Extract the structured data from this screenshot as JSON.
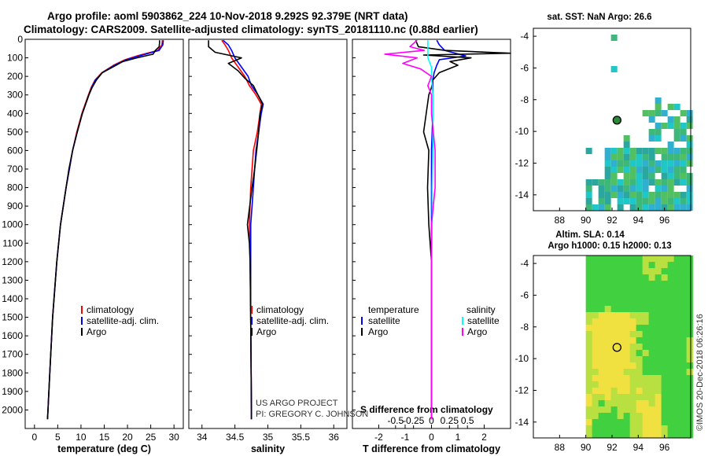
{
  "header": {
    "line1": "Argo profile: aoml 5903862_224 10-Nov-2018 9.292S 92.379E (NRT data)",
    "line2": "Climatology: CARS2009. Satellite-adjusted climatology: synTS_20181110.nc (0.88d earlier)"
  },
  "credit": {
    "project": "US ARGO PROJECT",
    "pi": "PI: GREGORY C. JOHNSON",
    "imos": "©IMOS 20-Dec-2018 06:26:16"
  },
  "colors": {
    "climatology": "#ff0000",
    "satellite": "#0000ff",
    "argo": "#000000",
    "salinity_satellite": "#00ffff",
    "salinity_argo": "#ff00ff"
  },
  "chart_data": [
    {
      "id": "temperature",
      "type": "line",
      "xlabel": "temperature (deg C)",
      "ylabel": "",
      "xlim": [
        -2,
        32
      ],
      "ylim": [
        2100,
        0
      ],
      "xticks": [
        0,
        5,
        10,
        15,
        20,
        25,
        30
      ],
      "xtick_labels": [
        "0",
        "5",
        "10",
        "15",
        "20",
        "25",
        "30"
      ],
      "yticks": [
        0,
        100,
        200,
        300,
        400,
        500,
        600,
        700,
        800,
        900,
        1000,
        1100,
        1200,
        1300,
        1400,
        1500,
        1600,
        1700,
        1800,
        1900,
        2000
      ],
      "legend": [
        "climatology",
        "satellite-adj. clim.",
        "Argo"
      ],
      "legend_position": "lower-right",
      "series": [
        {
          "name": "climatology",
          "color": "#ff0000",
          "depth": [
            5,
            30,
            60,
            90,
            110,
            140,
            180,
            220,
            260,
            300,
            400,
            500,
            600,
            700,
            800,
            1000,
            1200,
            1500,
            1800,
            2000,
            2050
          ],
          "values": [
            27.5,
            27.4,
            26.5,
            22,
            19.5,
            17,
            14.5,
            13,
            12.2,
            11.6,
            10.2,
            9.1,
            8.2,
            7.5,
            6.8,
            5.6,
            4.8,
            3.9,
            3.3,
            2.9,
            2.8
          ]
        },
        {
          "name": "satellite-adj. clim.",
          "color": "#0000ff",
          "depth": [
            5,
            30,
            60,
            90,
            110,
            140,
            180,
            220,
            260,
            300,
            400,
            500,
            600,
            700,
            800,
            1000,
            1200,
            1500,
            1800,
            2000,
            2050
          ],
          "values": [
            27.7,
            27.6,
            26.8,
            22.5,
            19.8,
            17.2,
            14.6,
            13.1,
            12.3,
            11.7,
            10.3,
            9.2,
            8.2,
            7.5,
            6.8,
            5.6,
            4.8,
            3.9,
            3.3,
            2.9,
            2.8
          ]
        },
        {
          "name": "Argo",
          "color": "#000000",
          "depth": [
            5,
            20,
            40,
            60,
            80,
            100,
            120,
            150,
            180,
            220,
            260,
            300,
            400,
            500,
            600,
            700,
            800,
            1000,
            1200,
            1500,
            1800,
            2000,
            2050
          ],
          "values": [
            26.9,
            26.9,
            26.8,
            26.0,
            25.5,
            22,
            19,
            16.8,
            14.6,
            13.3,
            12.4,
            11.7,
            10.3,
            9.2,
            8.2,
            7.4,
            6.8,
            5.6,
            4.8,
            3.9,
            3.3,
            2.9,
            2.8
          ]
        }
      ]
    },
    {
      "id": "salinity",
      "type": "line",
      "xlabel": "salinity",
      "xlim": [
        33.8,
        36.2
      ],
      "ylim": [
        2100,
        0
      ],
      "xticks": [
        34,
        34.5,
        35,
        35.5,
        36
      ],
      "xtick_labels": [
        "34",
        "34.5",
        "35",
        "35.5",
        "36"
      ],
      "legend": [
        "climatology",
        "satellite-adj. clim.",
        "Argo"
      ],
      "legend_position": "lower-right",
      "series": [
        {
          "name": "climatology",
          "color": "#ff0000",
          "depth": [
            5,
            30,
            60,
            100,
            150,
            200,
            250,
            300,
            350,
            400,
            500,
            600,
            700,
            800,
            1000,
            1200,
            1500,
            2000,
            2050
          ],
          "values": [
            34.3,
            34.35,
            34.4,
            34.45,
            34.55,
            34.65,
            34.72,
            34.82,
            34.9,
            34.88,
            34.84,
            34.78,
            34.76,
            34.74,
            34.72,
            34.73,
            34.74,
            34.75,
            34.75
          ]
        },
        {
          "name": "satellite-adj. clim.",
          "color": "#0000ff",
          "depth": [
            5,
            30,
            60,
            100,
            150,
            200,
            250,
            300,
            350,
            400,
            500,
            600,
            700,
            800,
            1000,
            1200,
            1500,
            2000,
            2050
          ],
          "values": [
            34.32,
            34.4,
            34.45,
            34.5,
            34.6,
            34.7,
            34.75,
            34.85,
            34.93,
            34.9,
            34.86,
            34.82,
            34.8,
            34.78,
            34.74,
            34.74,
            34.74,
            34.75,
            34.75
          ]
        },
        {
          "name": "Argo",
          "color": "#000000",
          "depth": [
            5,
            40,
            70,
            100,
            130,
            170,
            210,
            250,
            300,
            350,
            400,
            500,
            600,
            700,
            800,
            1000,
            1100,
            1200,
            1500,
            2000,
            2050
          ],
          "values": [
            34.1,
            34.1,
            34.2,
            34.6,
            34.4,
            34.55,
            34.65,
            34.78,
            34.85,
            34.92,
            34.88,
            34.86,
            34.83,
            34.8,
            34.76,
            34.69,
            34.72,
            34.73,
            34.74,
            34.75,
            34.75
          ]
        }
      ]
    },
    {
      "id": "difference",
      "type": "line",
      "xlabel": "T difference from climatology",
      "top_label": "S difference from climatology",
      "xlim": [
        -3,
        3
      ],
      "ylim": [
        2100,
        0
      ],
      "xticks": [
        -2,
        -1,
        0,
        1,
        2
      ],
      "xtick_labels": [
        "-2",
        "-1",
        "0",
        "1",
        "2"
      ],
      "sticks": [
        -0.5,
        -0.25,
        0,
        0.25,
        0.5
      ],
      "stick_labels": [
        "-0.5",
        "-0.25",
        "0",
        "0.25",
        "0.5"
      ],
      "legend_temperature_title": "temperature",
      "legend_salinity_title": "salinity",
      "legend_temperature": [
        "satellite",
        "Argo"
      ],
      "legend_salinity": [
        "satellite",
        "Argo"
      ],
      "series": [
        {
          "name": "T satellite",
          "color": "#0000ff",
          "depth": [
            5,
            30,
            60,
            90,
            110,
            140,
            180,
            220,
            300,
            400,
            600,
            800,
            1000,
            1500,
            2000,
            2050
          ],
          "values": [
            0.2,
            0.3,
            0.5,
            1.3,
            0.3,
            0.2,
            0.1,
            0.05,
            0.05,
            0.05,
            0.0,
            0.0,
            0.0,
            0.0,
            0.0,
            0.0
          ]
        },
        {
          "name": "T Argo",
          "color": "#000000",
          "depth": [
            5,
            40,
            60,
            75,
            85,
            100,
            120,
            140,
            180,
            220,
            260,
            300,
            400,
            500,
            600,
            800,
            1000,
            1200,
            1500,
            2000,
            2050
          ],
          "values": [
            -0.6,
            -0.5,
            0.5,
            3.0,
            -0.3,
            1.5,
            0.7,
            1.0,
            0.3,
            0.05,
            0.0,
            -0.1,
            -0.2,
            -0.3,
            -0.1,
            -0.15,
            -0.1,
            0.0,
            0.0,
            0.0,
            0.0
          ]
        },
        {
          "name": "S satellite",
          "color": "#00ffff",
          "depth": [
            5,
            50,
            100,
            150,
            200,
            300,
            400,
            600,
            800,
            1000,
            1200,
            1500,
            2000,
            2050
          ],
          "values": [
            -0.05,
            -0.05,
            -0.05,
            0.0,
            0.0,
            0.02,
            0.02,
            0.02,
            0.01,
            0.01,
            0.0,
            0.0,
            0.0,
            0.0
          ]
        },
        {
          "name": "S Argo",
          "color": "#ff00ff",
          "depth": [
            5,
            40,
            60,
            80,
            100,
            130,
            160,
            200,
            250,
            300,
            400,
            600,
            800,
            1000,
            1200,
            1500,
            2000,
            2050
          ],
          "values": [
            -0.2,
            -0.3,
            -0.1,
            -0.65,
            -0.2,
            -0.4,
            -0.15,
            0.0,
            -0.05,
            0.0,
            0.0,
            0.05,
            0.05,
            0.0,
            0.0,
            0.0,
            0.0,
            0.0
          ]
        }
      ]
    },
    {
      "id": "sst-map",
      "type": "heatmap",
      "title": "sat. SST: NaN Argo: 26.6",
      "xlim": [
        86,
        98
      ],
      "ylim": [
        -15,
        -3.5
      ],
      "xticks": [
        88,
        90,
        92,
        94,
        96
      ],
      "xtick_labels": [
        "88",
        "90",
        "92",
        "94",
        "96"
      ],
      "yticks": [
        -4,
        -6,
        -8,
        -10,
        -12,
        -14
      ],
      "ytick_labels": [
        "-4",
        "-6",
        "-8",
        "-10",
        "-12",
        "-14"
      ],
      "marker": {
        "lon": 92.379,
        "lat": -9.292
      }
    },
    {
      "id": "sla-map",
      "type": "heatmap",
      "title": "Altim. SLA: 0.14",
      "subtitle": "Argo h1000: 0.15 h2000: 0.13",
      "xlim": [
        86,
        98
      ],
      "ylim": [
        -15,
        -3.5
      ],
      "xticks": [
        88,
        90,
        92,
        94,
        96
      ],
      "xtick_labels": [
        "88",
        "90",
        "92",
        "94",
        "96"
      ],
      "yticks": [
        -4,
        -6,
        -8,
        -10,
        -12,
        -14
      ],
      "ytick_labels": [
        "-4",
        "-6",
        "-8",
        "-10",
        "-12",
        "-14"
      ],
      "marker": {
        "lon": 92.379,
        "lat": -9.292
      }
    }
  ]
}
